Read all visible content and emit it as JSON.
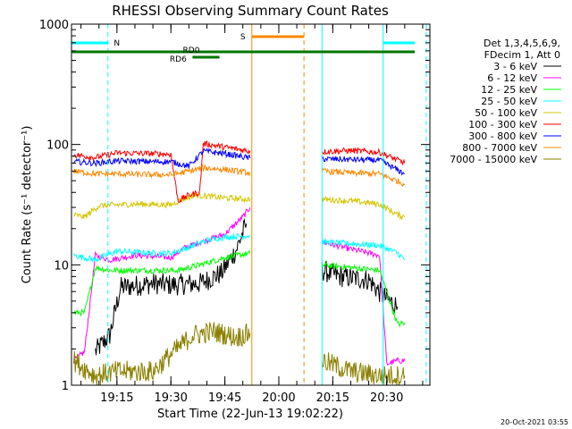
{
  "chart_data": {
    "type": "line",
    "title": "RHESSI Observing Summary Count Rates",
    "xlabel": "Start Time (22-Jun-13 19:02:22)",
    "ylabel": "Count Rate (s⁻¹ detector⁻¹)",
    "y_scale": "log",
    "ylim": [
      1,
      1000
    ],
    "y_ticks": [
      "1",
      "10",
      "100",
      "1000"
    ],
    "x_start": "19:02:22",
    "x_end": "20:42:00",
    "x_ticks": [
      "19:15",
      "19:30",
      "19:45",
      "20:00",
      "20:15",
      "20:30"
    ],
    "legend_header": [
      "Det 1,3,4,5,6,9,",
      "FDecim 1, Att 0"
    ],
    "legend_position": "right, outside plot",
    "grid": false,
    "data_gap": [
      "19:52:30",
      "20:10:30"
    ],
    "flags": [
      {
        "label": "N",
        "color": "#00ffff",
        "segments": [
          [
            "19:02:22",
            "19:12:30"
          ],
          [
            "20:29:00",
            "20:42:00"
          ]
        ]
      },
      {
        "label": "S",
        "color": "#ff8800",
        "segments": [
          [
            "19:52:30",
            "20:07:00"
          ]
        ]
      },
      {
        "label": "RD0",
        "color": "#007700",
        "segments": [
          [
            "19:02:22",
            "20:42:00"
          ]
        ]
      },
      {
        "label": "RD6",
        "color": "#007700",
        "segments": [
          [
            "19:36:00",
            "19:43:30"
          ]
        ]
      }
    ],
    "vertical_markers": [
      {
        "time": "19:02:22",
        "color": "#00ffff",
        "style": "solid"
      },
      {
        "time": "19:12:30",
        "color": "#00ffff",
        "style": "dashed"
      },
      {
        "time": "19:52:30",
        "color": "#ff8800",
        "style": "solid"
      },
      {
        "time": "20:07:00",
        "color": "#ff8800",
        "style": "dashed"
      },
      {
        "time": "20:12:00",
        "color": "#00ffff",
        "style": "solid"
      },
      {
        "time": "20:29:00",
        "color": "#00ffff",
        "style": "solid"
      },
      {
        "time": "20:41:00",
        "color": "#00ffff",
        "style": "dashed"
      }
    ],
    "series": [
      {
        "name": "3 - 6 keV",
        "color": "#000000",
        "x": [
          "19:09",
          "19:13",
          "19:16",
          "19:25",
          "19:30",
          "19:38",
          "19:44",
          "19:48",
          "19:51",
          "20:12",
          "20:17",
          "20:25",
          "20:29",
          "20:33"
        ],
        "y": [
          1.9,
          2.6,
          6.5,
          7.0,
          6.8,
          7.0,
          8.5,
          13.0,
          22.0,
          9.0,
          8.0,
          7.5,
          5.5,
          4.5
        ]
      },
      {
        "name": "6 - 12 keV",
        "color": "#ff00ff",
        "x": [
          "19:03",
          "19:06",
          "19:09",
          "19:13",
          "19:20",
          "19:30",
          "19:34",
          "19:40",
          "19:45",
          "19:50",
          "19:52",
          "20:12",
          "20:20",
          "20:28",
          "20:30",
          "20:33",
          "20:35"
        ],
        "y": [
          1.6,
          1.9,
          12.0,
          11.0,
          12.0,
          11.5,
          14.0,
          16.0,
          18.0,
          25.0,
          30.0,
          15.5,
          13.5,
          12.0,
          1.5,
          1.6,
          1.6
        ]
      },
      {
        "name": "12 - 25 keV",
        "color": "#00ff00",
        "x": [
          "19:03",
          "19:06",
          "19:09",
          "19:13",
          "19:20",
          "19:27",
          "19:32",
          "19:38",
          "19:45",
          "19:52",
          "20:12",
          "20:20",
          "20:28",
          "20:33",
          "20:35"
        ],
        "y": [
          4.0,
          4.0,
          9.5,
          9.0,
          9.0,
          9.0,
          9.0,
          10.0,
          11.5,
          12.5,
          10.0,
          9.5,
          9.0,
          3.2,
          3.3
        ]
      },
      {
        "name": "25 - 50 keV",
        "color": "#00ffff",
        "x": [
          "19:03",
          "19:09",
          "19:15",
          "19:25",
          "19:30",
          "19:35",
          "19:40",
          "19:45",
          "19:52",
          "20:12",
          "20:20",
          "20:28",
          "20:33",
          "20:35"
        ],
        "y": [
          12.0,
          11.0,
          13.0,
          12.5,
          12.5,
          14.0,
          16.0,
          17.0,
          17.5,
          15.5,
          15.0,
          14.5,
          12.5,
          11.0
        ]
      },
      {
        "name": "50 - 100 keV",
        "color": "#d4c400",
        "x": [
          "19:03",
          "19:06",
          "19:10",
          "19:20",
          "19:30",
          "19:33",
          "19:37",
          "19:45",
          "19:52",
          "20:12",
          "20:20",
          "20:28",
          "20:33",
          "20:35"
        ],
        "y": [
          26.0,
          25.0,
          31.0,
          32.0,
          31.5,
          35.0,
          38.0,
          36.0,
          35.0,
          35.0,
          34.0,
          32.0,
          26.0,
          25.0
        ]
      },
      {
        "name": "100 - 300 keV",
        "color": "#ff0000",
        "x": [
          "19:03",
          "19:09",
          "19:15",
          "19:25",
          "19:30",
          "19:32",
          "19:35",
          "19:38",
          "19:39",
          "19:45",
          "19:52",
          "20:12",
          "20:20",
          "20:28",
          "20:35"
        ],
        "y": [
          82.0,
          78.0,
          85.0,
          84.0,
          83.0,
          34.0,
          38.0,
          40.0,
          102.0,
          95.0,
          88.0,
          87.0,
          89.0,
          86.0,
          70.0
        ]
      },
      {
        "name": "300 - 800 keV",
        "color": "#0000ff",
        "x": [
          "19:03",
          "19:09",
          "19:15",
          "19:25",
          "19:30",
          "19:35",
          "19:39",
          "19:45",
          "19:52",
          "20:12",
          "20:20",
          "20:28",
          "20:35"
        ],
        "y": [
          72.0,
          70.0,
          73.0,
          72.0,
          72.0,
          66.0,
          88.0,
          84.0,
          77.0,
          76.0,
          75.0,
          74.0,
          57.0
        ]
      },
      {
        "name": "800 - 7000 keV",
        "color": "#ff8800",
        "x": [
          "19:03",
          "19:09",
          "19:15",
          "19:25",
          "19:30",
          "19:35",
          "19:39",
          "19:45",
          "19:52",
          "20:12",
          "20:20",
          "20:28",
          "20:35"
        ],
        "y": [
          60.0,
          57.0,
          57.0,
          56.0,
          56.0,
          60.0,
          64.0,
          62.0,
          58.0,
          60.0,
          58.0,
          57.0,
          47.0
        ]
      },
      {
        "name": "7000 - 15000 keV",
        "color": "#8b8000",
        "x": [
          "19:03",
          "19:09",
          "19:15",
          "19:25",
          "19:30",
          "19:36",
          "19:42",
          "19:48",
          "19:52",
          "20:12",
          "20:20",
          "20:28",
          "20:35"
        ],
        "y": [
          1.6,
          1.2,
          1.3,
          1.3,
          1.8,
          2.6,
          2.8,
          2.5,
          2.7,
          1.6,
          1.3,
          1.2,
          1.2
        ]
      }
    ],
    "footer_timestamp": "20-Oct-2021 03:55"
  }
}
